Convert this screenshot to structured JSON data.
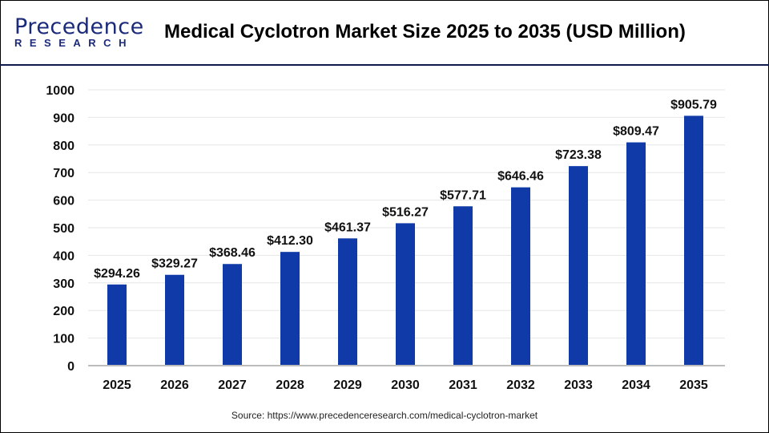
{
  "header": {
    "logo_main": "Precedence",
    "logo_sub": "RESEARCH",
    "title": "Medical Cyclotron Market Size 2025 to 2035 (USD Million)"
  },
  "source": "Source: https://www.precedenceresearch.com/medical-cyclotron-market",
  "chart_data": {
    "type": "bar",
    "title": "Medical Cyclotron Market Size 2025 to 2035 (USD Million)",
    "categories": [
      "2025",
      "2026",
      "2027",
      "2028",
      "2029",
      "2030",
      "2031",
      "2032",
      "2033",
      "2034",
      "2035"
    ],
    "values": [
      294.26,
      329.27,
      368.46,
      412.3,
      461.37,
      516.27,
      577.71,
      646.46,
      723.38,
      809.47,
      905.79
    ],
    "labels": [
      "$294.26",
      "$329.27",
      "$368.46",
      "$412.30",
      "$461.37",
      "$516.27",
      "$577.71",
      "$646.46",
      "$723.38",
      "$809.47",
      "$905.79"
    ],
    "yticks": [
      0,
      100,
      200,
      300,
      400,
      500,
      600,
      700,
      800,
      900,
      1000
    ],
    "ylim": [
      0,
      1000
    ],
    "grid": true,
    "bar_color": "#0f3aa8"
  }
}
